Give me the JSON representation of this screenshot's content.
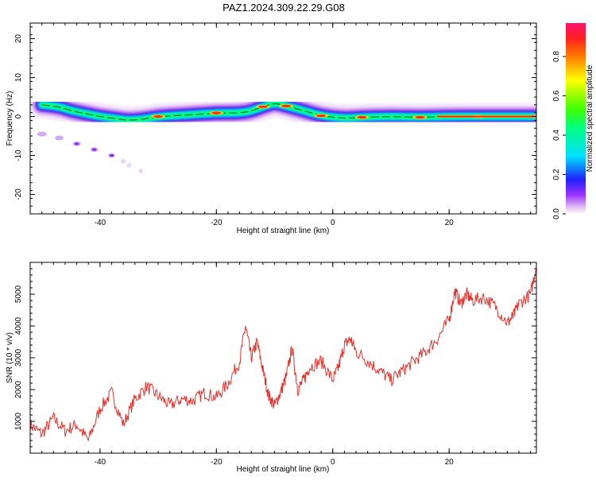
{
  "title": "PAZ1.2024.309.22.29.G08",
  "chart_data": [
    {
      "type": "heatmap",
      "xlabel": "Height of straight line (km)",
      "ylabel": "Frequency (Hz)",
      "xlim": [
        -52,
        35
      ],
      "ylim": [
        -25,
        24
      ],
      "xticks": [
        -40,
        -20,
        0,
        20
      ],
      "yticks": [
        -20,
        -10,
        0,
        10,
        20
      ],
      "ridge": [
        {
          "x": -50,
          "y": 3
        },
        {
          "x": -47,
          "y": 2.5
        },
        {
          "x": -45,
          "y": 1.5
        },
        {
          "x": -42,
          "y": 0.6
        },
        {
          "x": -40,
          "y": 0
        },
        {
          "x": -37,
          "y": -0.6
        },
        {
          "x": -35,
          "y": -1
        },
        {
          "x": -32,
          "y": -0.6
        },
        {
          "x": -30,
          "y": 0
        },
        {
          "x": -25,
          "y": 0.4
        },
        {
          "x": -20,
          "y": 0.9
        },
        {
          "x": -15,
          "y": 0.9
        },
        {
          "x": -12,
          "y": 2.5
        },
        {
          "x": -10,
          "y": 3.5
        },
        {
          "x": -8,
          "y": 2.7
        },
        {
          "x": -5,
          "y": 1.5
        },
        {
          "x": -2,
          "y": 0.2
        },
        {
          "x": 2,
          "y": -0.5
        },
        {
          "x": 5,
          "y": -0.2
        },
        {
          "x": 10,
          "y": 0
        },
        {
          "x": 15,
          "y": -0.2
        },
        {
          "x": 20,
          "y": 0
        },
        {
          "x": 25,
          "y": 0
        },
        {
          "x": 30,
          "y": 0
        },
        {
          "x": 35,
          "y": 0
        }
      ],
      "alias": [
        {
          "x": -50,
          "y": -4.5
        },
        {
          "x": -47,
          "y": -5.5
        },
        {
          "x": -44,
          "y": -7
        },
        {
          "x": -41,
          "y": -8.5
        },
        {
          "x": -38,
          "y": -10
        },
        {
          "x": -36,
          "y": -11.5
        },
        {
          "x": -35,
          "y": -12.5
        },
        {
          "x": -33,
          "y": -14
        }
      ]
    },
    {
      "type": "line",
      "xlabel": "Height of straight line (km)",
      "ylabel": "SNR (10 * v/v)",
      "xlim": [
        -52,
        35
      ],
      "ylim": [
        0,
        6000
      ],
      "xticks": [
        -40,
        -20,
        0,
        20
      ],
      "yticks": [
        1000,
        2000,
        3000,
        4000,
        5000
      ],
      "color": "#e8302a",
      "series": [
        {
          "x": [
            -52,
            -50,
            -48,
            -46,
            -44,
            -42,
            -40,
            -38,
            -36,
            -34,
            -32,
            -30,
            -28,
            -26,
            -24,
            -22,
            -20,
            -18,
            -16,
            -15,
            -14,
            -13,
            -12,
            -11,
            -10,
            -9,
            -8,
            -7,
            -6,
            -5,
            -4,
            -2,
            0,
            1,
            2,
            3,
            4,
            6,
            8,
            10,
            12,
            14,
            16,
            18,
            20,
            21,
            22,
            23,
            24,
            26,
            28,
            30,
            31,
            32,
            34,
            35
          ],
          "y": [
            900,
            600,
            1100,
            700,
            900,
            400,
            1400,
            1900,
            900,
            1700,
            2100,
            1800,
            1500,
            1700,
            1650,
            1900,
            1750,
            2200,
            2900,
            4000,
            3000,
            3500,
            2600,
            1800,
            1500,
            1900,
            2400,
            3300,
            2000,
            2300,
            2700,
            2900,
            2300,
            2700,
            3400,
            3600,
            3200,
            2900,
            2600,
            2300,
            2600,
            2900,
            3200,
            3600,
            4200,
            5100,
            4700,
            5000,
            4800,
            4900,
            4600,
            4100,
            4300,
            4700,
            5000,
            5900
          ]
        }
      ]
    }
  ],
  "colorbar": {
    "label": "Normalized spectral amplitude",
    "ticks": [
      0.0,
      0.2,
      0.4,
      0.6,
      0.8
    ],
    "tick_labels": [
      "0.0",
      "0.2",
      "0.4",
      "0.6",
      "0.8"
    ],
    "max": 0.97
  }
}
